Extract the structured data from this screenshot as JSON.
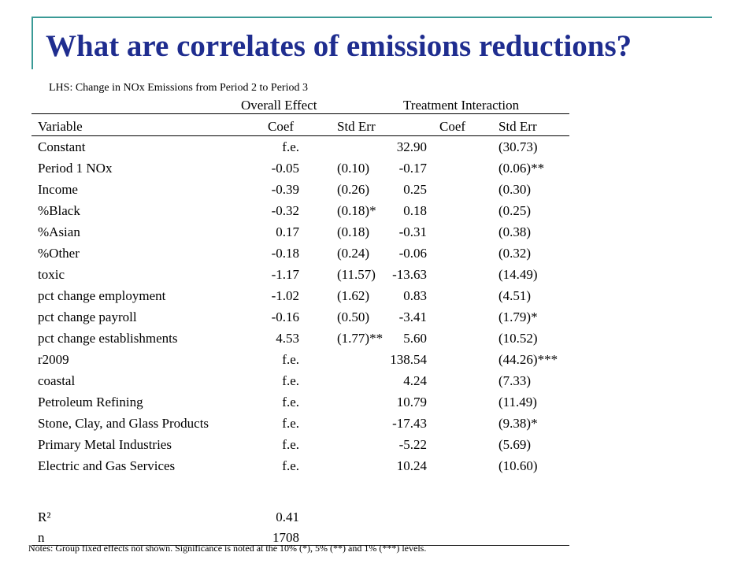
{
  "title": "What are correlates of emissions reductions?",
  "lhs": "LHS: Change in NOx Emissions from Period 2 to Period 3",
  "group_headers": {
    "overall": "Overall Effect",
    "interaction": "Treatment Interaction"
  },
  "columns": {
    "variable": "Variable",
    "coef1": "Coef",
    "se1": "Std Err",
    "coef2": "Coef",
    "se2": "Std Err"
  },
  "rows": [
    {
      "variable": "Constant",
      "coef1": "f.e.",
      "se1": "",
      "coef2": "32.90",
      "se2": "(30.73)"
    },
    {
      "variable": "Period 1 NOx",
      "coef1": "-0.05",
      "se1": "(0.10)",
      "coef2": "-0.17",
      "se2": "(0.06)**"
    },
    {
      "variable": "Income",
      "coef1": "-0.39",
      "se1": "(0.26)",
      "coef2": "0.25",
      "se2": "(0.30)"
    },
    {
      "variable": "%Black",
      "coef1": "-0.32",
      "se1": "(0.18)*",
      "coef2": "0.18",
      "se2": "(0.25)"
    },
    {
      "variable": "%Asian",
      "coef1": "0.17",
      "se1": "(0.18)",
      "coef2": "-0.31",
      "se2": "(0.38)"
    },
    {
      "variable": "%Other",
      "coef1": "-0.18",
      "se1": "(0.24)",
      "coef2": "-0.06",
      "se2": "(0.32)"
    },
    {
      "variable": "toxic",
      "coef1": "-1.17",
      "se1": "(11.57)",
      "coef2": "-13.63",
      "se2": "(14.49)"
    },
    {
      "variable": "pct change employment",
      "coef1": "-1.02",
      "se1": "(1.62)",
      "coef2": "0.83",
      "se2": "(4.51)"
    },
    {
      "variable": "pct change payroll",
      "coef1": "-0.16",
      "se1": "(0.50)",
      "coef2": "-3.41",
      "se2": "(1.79)*"
    },
    {
      "variable": "pct change establishments",
      "coef1": "4.53",
      "se1": "(1.77)**",
      "coef2": "5.60",
      "se2": "(10.52)"
    },
    {
      "variable": "r2009",
      "coef1": "f.e.",
      "se1": "",
      "coef2": "138.54",
      "se2": "(44.26)***"
    },
    {
      "variable": "coastal",
      "coef1": "f.e.",
      "se1": "",
      "coef2": "4.24",
      "se2": "(7.33)"
    },
    {
      "variable": "Petroleum Refining",
      "coef1": "f.e.",
      "se1": "",
      "coef2": "10.79",
      "se2": "(11.49)"
    },
    {
      "variable": "Stone, Clay, and Glass Products",
      "coef1": "f.e.",
      "se1": "",
      "coef2": "-17.43",
      "se2": "(9.38)*"
    },
    {
      "variable": "Primary Metal Industries",
      "coef1": "f.e.",
      "se1": "",
      "coef2": "-5.22",
      "se2": "(5.69)"
    },
    {
      "variable": "Electric and Gas Services",
      "coef1": "f.e.",
      "se1": "",
      "coef2": "10.24",
      "se2": "(10.60)"
    }
  ],
  "stats": [
    {
      "label": "R²",
      "value": "0.41"
    },
    {
      "label": "n",
      "value": "1708"
    }
  ],
  "notes": "Notes: Group fixed effects not shown. Significance is noted at the 10% (*), 5% (**) and 1% (***) levels."
}
